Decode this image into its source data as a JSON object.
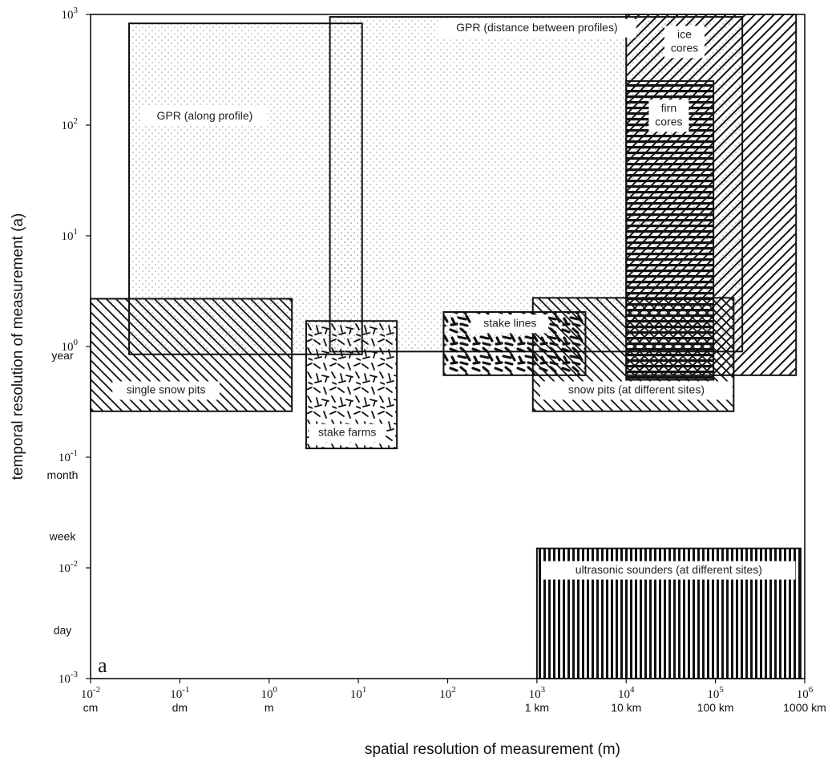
{
  "chart_data": {
    "type": "area",
    "xlabel": "spatial resolution of measurement (m)",
    "ylabel": "temporal resolution of measurement (a)",
    "xscale": "log",
    "yscale": "log",
    "xlim": [
      0.01,
      1000000
    ],
    "ylim": [
      0.001,
      1000
    ],
    "panel_label": "a",
    "x_ticks": [
      {
        "value": 0.01,
        "base": "10",
        "exp": "-2",
        "unit": "cm"
      },
      {
        "value": 0.1,
        "base": "10",
        "exp": "-1",
        "unit": "dm"
      },
      {
        "value": 1,
        "base": "10",
        "exp": "0",
        "unit": "m"
      },
      {
        "value": 10,
        "base": "10",
        "exp": "1",
        "unit": ""
      },
      {
        "value": 100,
        "base": "10",
        "exp": "2",
        "unit": ""
      },
      {
        "value": 1000,
        "base": "10",
        "exp": "3",
        "unit": "1 km"
      },
      {
        "value": 10000,
        "base": "10",
        "exp": "4",
        "unit": "10 km"
      },
      {
        "value": 100000,
        "base": "10",
        "exp": "5",
        "unit": "100 km"
      },
      {
        "value": 1000000,
        "base": "10",
        "exp": "6",
        "unit": "1000 km"
      }
    ],
    "y_ticks": [
      {
        "value": 0.001,
        "base": "10",
        "exp": "-3"
      },
      {
        "value": 0.01,
        "base": "10",
        "exp": "-2"
      },
      {
        "value": 0.1,
        "base": "10",
        "exp": "-1"
      },
      {
        "value": 1,
        "base": "10",
        "exp": "0"
      },
      {
        "value": 10,
        "base": "10",
        "exp": "1"
      },
      {
        "value": 100,
        "base": "10",
        "exp": "2"
      },
      {
        "value": 1000,
        "base": "10",
        "exp": "3"
      }
    ],
    "y_time_labels": [
      {
        "value": 0.0027,
        "label": "day"
      },
      {
        "value": 0.019,
        "label": "week"
      },
      {
        "value": 0.083,
        "label": "month"
      },
      {
        "value": 1,
        "label": "year"
      }
    ],
    "regions": [
      {
        "label": "GPR (distance between profiles)",
        "label_lines": [
          "GPR (distance between profiles)"
        ],
        "x": [
          4.8,
          200000
        ],
        "y": [
          0.9,
          950
        ],
        "pattern": "dots",
        "label_at": [
          1000,
          750
        ]
      },
      {
        "label": "GPR (along profile)",
        "label_lines": [
          "GPR (along profile)"
        ],
        "x": [
          0.027,
          11
        ],
        "y": [
          0.85,
          830
        ],
        "pattern": "dots",
        "label_at": [
          0.19,
          120
        ]
      },
      {
        "label": "ice cores",
        "label_lines": [
          "ice",
          "cores"
        ],
        "x": [
          10000,
          800000
        ],
        "y": [
          0.55,
          1000
        ],
        "pattern": "diag-ne",
        "label_at": [
          45000,
          650
        ]
      },
      {
        "label": "firn cores",
        "label_lines": [
          "firn",
          "cores"
        ],
        "x": [
          10000,
          95000
        ],
        "y": [
          0.5,
          250
        ],
        "pattern": "hlines",
        "label_at": [
          30000,
          140
        ]
      },
      {
        "label": "single snow pits",
        "label_lines": [
          "single snow pits"
        ],
        "x": [
          0.01,
          1.8
        ],
        "y": [
          0.26,
          2.7
        ],
        "pattern": "diag-nw",
        "label_at": [
          0.07,
          0.4
        ]
      },
      {
        "label": "stake farms",
        "label_lines": [
          "stake farms"
        ],
        "x": [
          2.6,
          27
        ],
        "y": [
          0.12,
          1.7
        ],
        "pattern": "scatter-dashes",
        "label_at": [
          7.5,
          0.165
        ]
      },
      {
        "label": "stake lines",
        "label_lines": [
          "stake lines"
        ],
        "x": [
          90,
          3500
        ],
        "y": [
          0.55,
          2.05
        ],
        "pattern": "heavy-dashes",
        "label_at": [
          500,
          1.6
        ]
      },
      {
        "label": "snow pits (at different sites)",
        "label_lines": [
          "snow pits (at different sites)"
        ],
        "x": [
          900,
          160000
        ],
        "y": [
          0.26,
          2.75
        ],
        "pattern": "diag-nw",
        "label_at": [
          13000,
          0.4
        ]
      },
      {
        "label": "ultrasonic sounders (at different sites)",
        "label_lines": [
          "ultrasonic sounders (at different sites)"
        ],
        "x": [
          1000,
          900000
        ],
        "y": [
          0.001,
          0.015
        ],
        "pattern": "vlines",
        "label_at": [
          30000,
          0.0095
        ]
      }
    ]
  }
}
